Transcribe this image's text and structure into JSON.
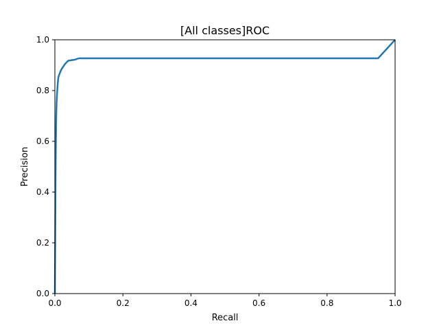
{
  "chart_data": {
    "type": "line",
    "title": "[All classes]ROC",
    "xlabel": "Recall",
    "ylabel": "Precision",
    "xlim": [
      0.0,
      1.0
    ],
    "ylim": [
      0.0,
      1.0
    ],
    "xticks": [
      0.0,
      0.2,
      0.4,
      0.6,
      0.8,
      1.0
    ],
    "yticks": [
      0.0,
      0.2,
      0.4,
      0.6,
      0.8,
      1.0
    ],
    "tick_labels_x": [
      "0.0",
      "0.2",
      "0.4",
      "0.6",
      "0.8",
      "1.0"
    ],
    "tick_labels_y": [
      "0.0",
      "0.2",
      "0.4",
      "0.6",
      "0.8",
      "1.0"
    ],
    "grid": false,
    "legend": "none",
    "series": [
      {
        "color": "#1f77b4",
        "x": [
          0.0,
          0.001,
          0.002,
          0.003,
          0.004,
          0.005,
          0.006,
          0.008,
          0.01,
          0.012,
          0.015,
          0.018,
          0.02,
          0.025,
          0.03,
          0.035,
          0.04,
          0.05,
          0.06,
          0.07,
          0.1,
          0.3,
          0.5,
          0.7,
          0.9,
          0.95,
          1.0
        ],
        "y": [
          0.0,
          0.22,
          0.45,
          0.6,
          0.7,
          0.75,
          0.78,
          0.82,
          0.85,
          0.86,
          0.87,
          0.88,
          0.885,
          0.895,
          0.905,
          0.912,
          0.918,
          0.92,
          0.922,
          0.927,
          0.927,
          0.927,
          0.927,
          0.927,
          0.927,
          0.927,
          1.0
        ]
      }
    ]
  }
}
